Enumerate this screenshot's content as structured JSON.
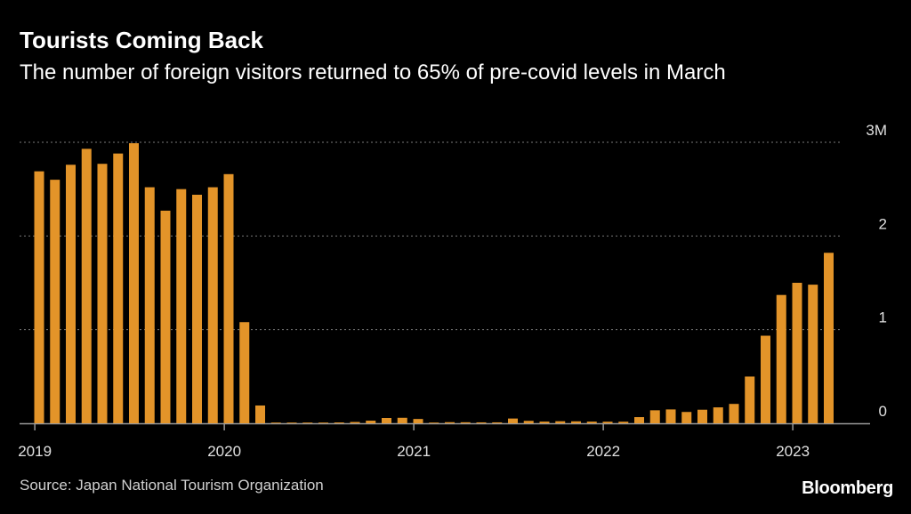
{
  "header": {
    "title": "Tourists Coming Back",
    "subtitle": "The number of foreign visitors returned to 65% of pre-covid levels in March"
  },
  "footer": {
    "source": "Source: Japan National Tourism Organization",
    "brand": "Bloomberg"
  },
  "colors": {
    "bar": "#e39429",
    "background": "#000000",
    "grid": "#7a7a7a",
    "text": "#ffffff"
  },
  "chart_data": {
    "type": "bar",
    "title": "Tourists Coming Back",
    "subtitle": "The number of foreign visitors returned to 65% of pre-covid levels in March",
    "xlabel": "",
    "ylabel": "",
    "ylim": [
      0,
      3
    ],
    "y_unit": "M",
    "y_ticks": [
      {
        "value": 0,
        "label": "0"
      },
      {
        "value": 1,
        "label": "1"
      },
      {
        "value": 2,
        "label": "2"
      },
      {
        "value": 3,
        "label": "3M"
      }
    ],
    "x_ticks": [
      {
        "index": 0,
        "label": "2019"
      },
      {
        "index": 12,
        "label": "2020"
      },
      {
        "index": 24,
        "label": "2021"
      },
      {
        "index": 36,
        "label": "2022"
      },
      {
        "index": 48,
        "label": "2023"
      }
    ],
    "grid": true,
    "categories": [
      "2019-01",
      "2019-02",
      "2019-03",
      "2019-04",
      "2019-05",
      "2019-06",
      "2019-07",
      "2019-08",
      "2019-09",
      "2019-10",
      "2019-11",
      "2019-12",
      "2020-01",
      "2020-02",
      "2020-03",
      "2020-04",
      "2020-05",
      "2020-06",
      "2020-07",
      "2020-08",
      "2020-09",
      "2020-10",
      "2020-11",
      "2020-12",
      "2021-01",
      "2021-02",
      "2021-03",
      "2021-04",
      "2021-05",
      "2021-06",
      "2021-07",
      "2021-08",
      "2021-09",
      "2021-10",
      "2021-11",
      "2021-12",
      "2022-01",
      "2022-02",
      "2022-03",
      "2022-04",
      "2022-05",
      "2022-06",
      "2022-07",
      "2022-08",
      "2022-09",
      "2022-10",
      "2022-11",
      "2022-12",
      "2023-01",
      "2023-02",
      "2023-03"
    ],
    "series": [
      {
        "name": "Foreign visitors",
        "values": [
          2.69,
          2.6,
          2.76,
          2.93,
          2.77,
          2.88,
          2.99,
          2.52,
          2.27,
          2.5,
          2.44,
          2.52,
          2.66,
          1.08,
          0.19,
          0.003,
          0.002,
          0.003,
          0.004,
          0.009,
          0.014,
          0.028,
          0.057,
          0.059,
          0.046,
          0.007,
          0.012,
          0.011,
          0.01,
          0.01,
          0.051,
          0.026,
          0.018,
          0.022,
          0.021,
          0.018,
          0.017,
          0.017,
          0.066,
          0.139,
          0.148,
          0.121,
          0.145,
          0.17,
          0.207,
          0.499,
          0.935,
          1.37,
          1.5,
          1.48,
          1.82
        ]
      }
    ]
  }
}
